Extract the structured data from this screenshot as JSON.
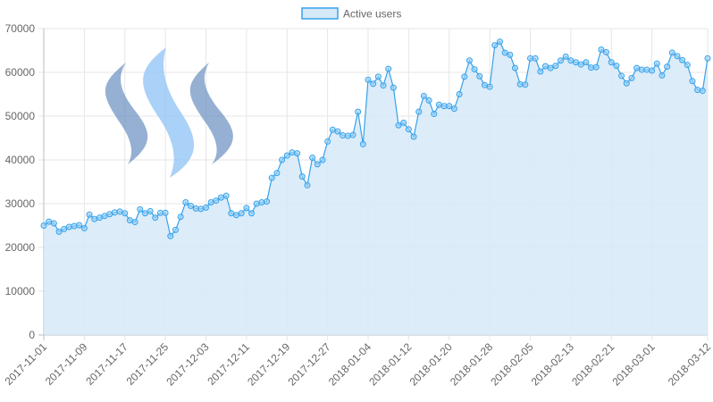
{
  "chart_data": {
    "type": "area",
    "legend": {
      "label": "Active users",
      "position": "top-center"
    },
    "colors": {
      "line": "#36a2eb",
      "fill": "#d6e9f8",
      "point_fill": "#9ad0f5",
      "grid": "#e6e6e6",
      "axis_text": "#666666"
    },
    "ylim": [
      0,
      70000
    ],
    "yticks": [
      "0",
      "10000",
      "20000",
      "30000",
      "40000",
      "50000",
      "60000",
      "70000"
    ],
    "xlabels": [
      "2017-11-01",
      "2017-11-09",
      "2017-11-17",
      "2017-11-25",
      "2017-12-03",
      "2017-12-11",
      "2017-12-19",
      "2017-12-27",
      "2018-01-04",
      "2018-01-12",
      "2018-01-20",
      "2018-01-28",
      "2018-02-05",
      "2018-02-13",
      "2018-02-21",
      "2018-03-01",
      "2018-03-12"
    ],
    "start_date": "2017-11-01",
    "series": [
      {
        "name": "Active users",
        "values": [
          25000,
          25900,
          25500,
          23600,
          24200,
          24700,
          24900,
          25100,
          24400,
          27500,
          26500,
          26800,
          27200,
          27600,
          28000,
          28200,
          27800,
          26200,
          25800,
          28700,
          27800,
          28300,
          26800,
          27900,
          27900,
          22600,
          24000,
          27000,
          30300,
          29500,
          28900,
          28800,
          29100,
          30300,
          30700,
          31400,
          31800,
          27800,
          27400,
          27800,
          29000,
          27800,
          30000,
          30300,
          30500,
          35900,
          37000,
          40000,
          41000,
          41700,
          41500,
          36200,
          34200,
          40500,
          39000,
          40000,
          44200,
          46900,
          46500,
          45600,
          45500,
          45700,
          51000,
          43600,
          58300,
          57400,
          59000,
          57000,
          60800,
          56500,
          47900,
          48500,
          47000,
          45300,
          51000,
          54600,
          53600,
          50500,
          52600,
          52300,
          52300,
          51700,
          55000,
          59000,
          62700,
          60700,
          59100,
          57100,
          56700,
          66200,
          67000,
          64500,
          64000,
          61000,
          57300,
          57200,
          63200,
          63200,
          60200,
          61400,
          61000,
          61500,
          62700,
          63600,
          62700,
          62300,
          61800,
          62300,
          61100,
          61200,
          65200,
          64600,
          62300,
          61500,
          59200,
          57500,
          58700,
          61000,
          60600,
          60600,
          60400,
          62000,
          59300,
          61300,
          64500,
          63700,
          62800,
          61700,
          58000,
          56000,
          55800,
          63200
        ]
      }
    ]
  },
  "logo": {
    "name": "steem-logo"
  }
}
